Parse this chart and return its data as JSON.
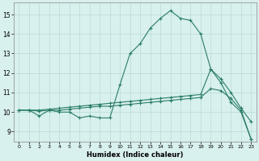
{
  "line1_x": [
    0,
    1,
    2,
    3,
    4,
    5,
    6,
    7,
    8,
    9,
    10,
    11,
    12,
    13,
    14,
    15,
    16,
    17,
    18,
    19,
    20,
    21,
    22,
    23
  ],
  "line1_y": [
    10.1,
    10.1,
    9.8,
    10.1,
    10.0,
    10.0,
    9.7,
    9.8,
    9.7,
    9.7,
    11.4,
    13.0,
    13.5,
    14.3,
    14.8,
    15.2,
    14.8,
    14.7,
    14.0,
    12.2,
    11.5,
    10.5,
    10.0,
    8.6
  ],
  "line2_x": [
    0,
    1,
    2,
    3,
    4,
    5,
    6,
    7,
    8,
    9,
    10,
    11,
    12,
    13,
    14,
    15,
    16,
    17,
    18,
    19,
    20,
    21,
    22,
    23
  ],
  "line2_y": [
    10.1,
    10.1,
    10.1,
    10.15,
    10.2,
    10.25,
    10.3,
    10.35,
    10.4,
    10.45,
    10.5,
    10.55,
    10.6,
    10.65,
    10.7,
    10.75,
    10.8,
    10.85,
    10.9,
    12.2,
    11.7,
    11.0,
    10.2,
    9.5
  ],
  "line3_x": [
    0,
    1,
    2,
    3,
    4,
    5,
    6,
    7,
    8,
    9,
    10,
    11,
    12,
    13,
    14,
    15,
    16,
    17,
    18,
    19,
    20,
    21,
    22,
    23
  ],
  "line3_y": [
    10.1,
    10.1,
    10.05,
    10.1,
    10.1,
    10.15,
    10.2,
    10.25,
    10.3,
    10.3,
    10.35,
    10.4,
    10.45,
    10.5,
    10.55,
    10.6,
    10.65,
    10.7,
    10.75,
    11.2,
    11.1,
    10.7,
    10.1,
    8.6
  ],
  "color": "#2a7d68",
  "bg_color": "#d8f0ee",
  "grid_color": "#b8dbd8",
  "xlabel": "Humidex (Indice chaleur)",
  "ylim": [
    8.5,
    15.6
  ],
  "xlim": [
    -0.5,
    23.5
  ],
  "yticks": [
    9,
    10,
    11,
    12,
    13,
    14,
    15
  ],
  "xticks": [
    0,
    1,
    2,
    3,
    4,
    5,
    6,
    7,
    8,
    9,
    10,
    11,
    12,
    13,
    14,
    15,
    16,
    17,
    18,
    19,
    20,
    21,
    22,
    23
  ],
  "xlabel_fontsize": 6.0,
  "ytick_fontsize": 5.5,
  "xtick_fontsize": 4.5
}
